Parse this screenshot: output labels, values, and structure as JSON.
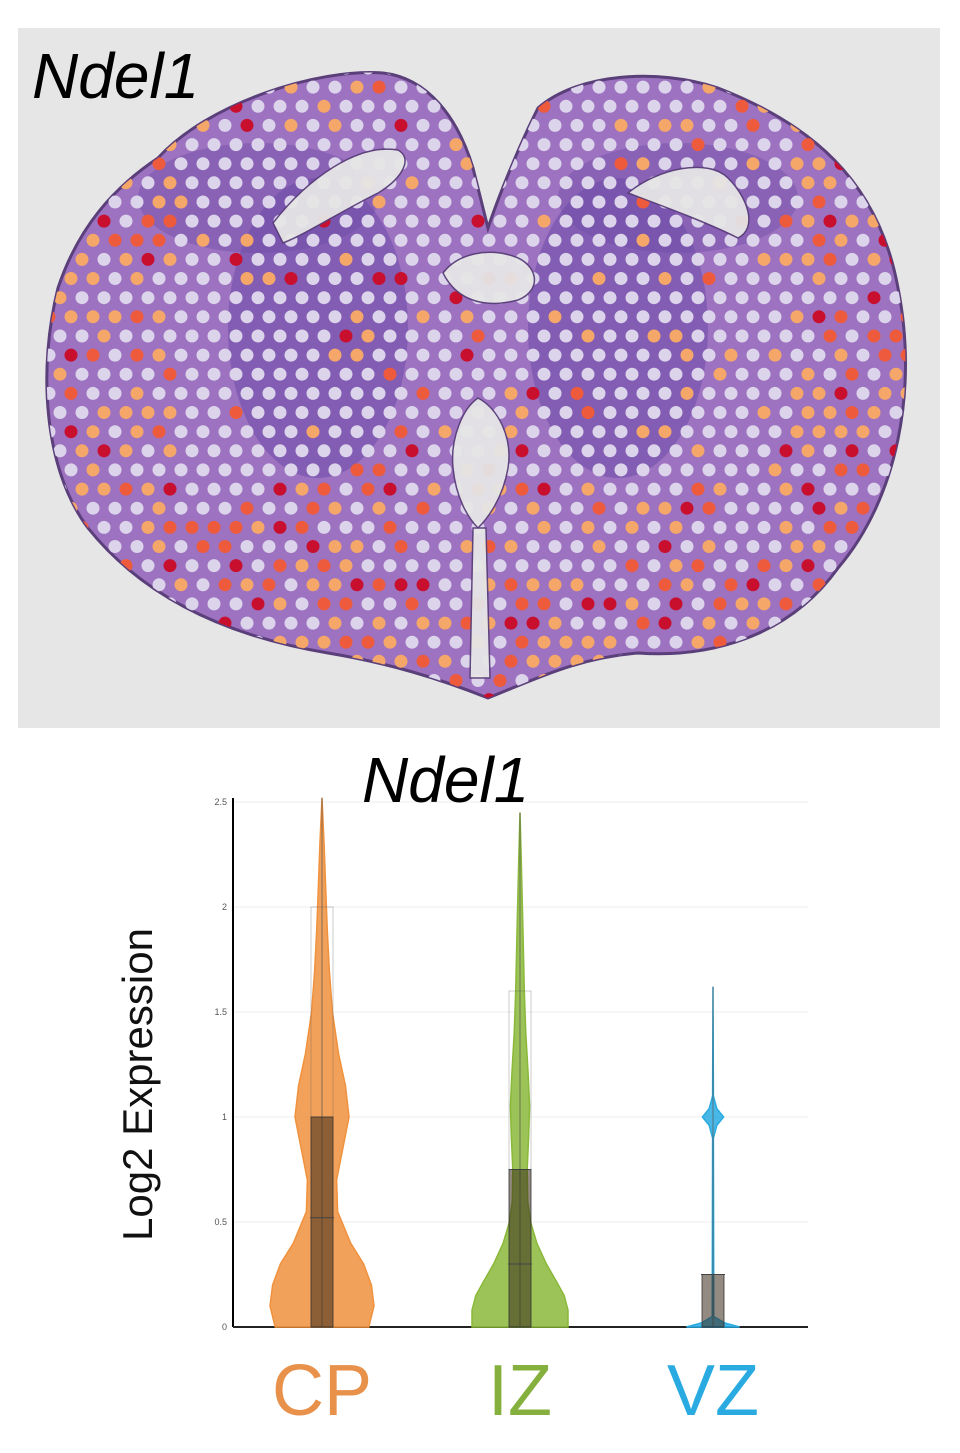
{
  "tissue_panel": {
    "gene_label": "Ndel1",
    "colors": {
      "background": "#e6e6e6",
      "tissue_fill": "#9d72c0",
      "tissue_dark": "#6b4ca8",
      "tissue_outline": "#5a3f7a",
      "spot_low": "#dcd4ea",
      "spot_mid": "#f5a76a",
      "spot_high": "#ee5b3c",
      "spot_max": "#c8102e"
    }
  },
  "chart_data": {
    "type": "violin",
    "title": "Ndel1",
    "ylabel": "Log2 Expression",
    "ylim": [
      0,
      2.5
    ],
    "yticks": [
      "0",
      "0.5",
      "1",
      "1.5",
      "2",
      "2.5"
    ],
    "grid": true,
    "categories": [
      "CP",
      "IZ",
      "VZ"
    ],
    "series": [
      {
        "color": "#f0913d",
        "label_color": "#e8914a",
        "max": 2.52,
        "q1": 0.0,
        "median": 0.52,
        "q3": 1.0,
        "box_outline_top": 2.0,
        "density": [
          [
            0,
            0.9
          ],
          [
            0.1,
            1.0
          ],
          [
            0.2,
            0.95
          ],
          [
            0.3,
            0.8
          ],
          [
            0.4,
            0.55
          ],
          [
            0.55,
            0.3
          ],
          [
            0.7,
            0.28
          ],
          [
            0.85,
            0.4
          ],
          [
            1.0,
            0.52
          ],
          [
            1.15,
            0.45
          ],
          [
            1.3,
            0.32
          ],
          [
            1.5,
            0.2
          ],
          [
            1.7,
            0.14
          ],
          [
            1.9,
            0.1
          ],
          [
            2.1,
            0.07
          ],
          [
            2.3,
            0.04
          ],
          [
            2.52,
            0.0
          ]
        ]
      },
      {
        "color": "#8ab83a",
        "label_color": "#86b03d",
        "max": 2.45,
        "q1": 0.0,
        "median": 0.3,
        "q3": 0.75,
        "box_outline_top": 1.6,
        "density": [
          [
            0,
            1.0
          ],
          [
            0.08,
            1.0
          ],
          [
            0.15,
            0.92
          ],
          [
            0.22,
            0.75
          ],
          [
            0.3,
            0.55
          ],
          [
            0.4,
            0.35
          ],
          [
            0.5,
            0.22
          ],
          [
            0.6,
            0.16
          ],
          [
            0.75,
            0.15
          ],
          [
            0.9,
            0.18
          ],
          [
            1.05,
            0.2
          ],
          [
            1.2,
            0.17
          ],
          [
            1.4,
            0.12
          ],
          [
            1.6,
            0.09
          ],
          [
            1.9,
            0.06
          ],
          [
            2.2,
            0.03
          ],
          [
            2.45,
            0.0
          ]
        ]
      },
      {
        "color": "#29abe2",
        "label_color": "#29abe2",
        "max": 1.62,
        "q1": 0.0,
        "median": 0.25,
        "q3": 0.25,
        "density": [
          [
            0,
            0.7
          ],
          [
            0.02,
            0.3
          ],
          [
            0.05,
            0.02
          ],
          [
            0.9,
            0.01
          ],
          [
            0.96,
            0.1
          ],
          [
            1.0,
            0.28
          ],
          [
            1.04,
            0.1
          ],
          [
            1.1,
            0.01
          ],
          [
            1.62,
            0.0
          ]
        ]
      }
    ]
  }
}
